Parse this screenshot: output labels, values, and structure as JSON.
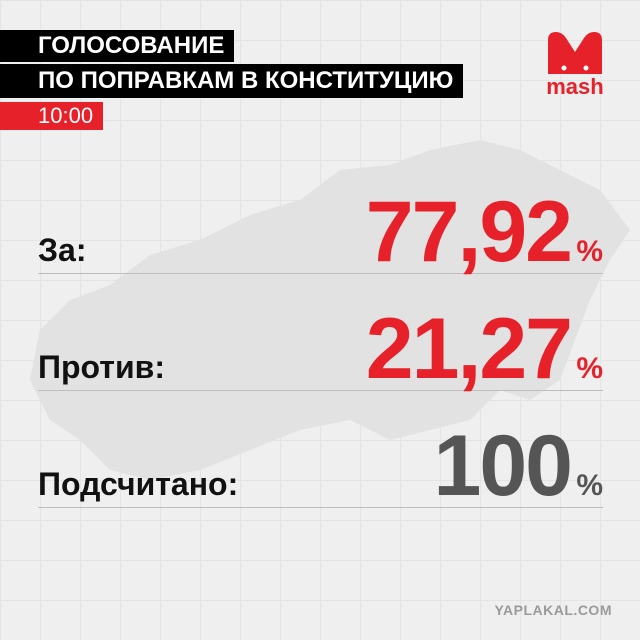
{
  "header": {
    "title_line_1": "ГОЛОСОВАНИЕ",
    "title_line_2": "ПО ПОПРАВКАМ В КОНСТИТУЦИЮ",
    "time": "10:00",
    "logo": "mash"
  },
  "results": [
    {
      "label": "За:",
      "value": "77,92",
      "unit": "%"
    },
    {
      "label": "Против:",
      "value": "21,27",
      "unit": "%"
    },
    {
      "label": "Подсчитано:",
      "value": "100",
      "unit": "%"
    }
  ],
  "watermark": "YAPLAKAL.COM"
}
